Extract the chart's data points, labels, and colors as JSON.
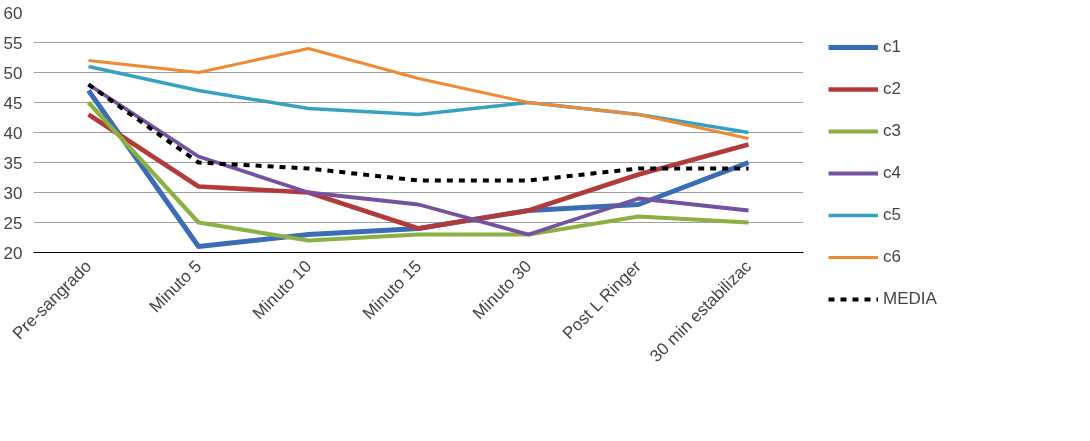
{
  "chart_data": {
    "type": "line",
    "categories": [
      "Pre-sangrado",
      "Minuto 5",
      "Minuto 10",
      "Minuto 15",
      "Minuto 30",
      "Post L Ringer",
      "30 min estabilizac"
    ],
    "ylim": [
      20,
      60
    ],
    "yticks": [
      20,
      25,
      30,
      35,
      40,
      45,
      50,
      55,
      60
    ],
    "grid": "y",
    "legend": "right",
    "line_style": "solid",
    "marker": "none",
    "series": [
      {
        "name": "c1",
        "color": "#3a6db5",
        "values": [
          47,
          21,
          23,
          24,
          27,
          28,
          35
        ]
      },
      {
        "name": "c2",
        "color": "#b33a3a",
        "values": [
          43,
          31,
          30,
          24,
          27,
          33,
          38
        ]
      },
      {
        "name": "c3",
        "color": "#8cb043",
        "values": [
          45,
          25,
          22,
          23,
          23,
          26,
          25
        ]
      },
      {
        "name": "c4",
        "color": "#7452a0",
        "values": [
          48,
          36,
          30,
          28,
          23,
          29,
          27
        ]
      },
      {
        "name": "c5",
        "color": "#35a3c0",
        "values": [
          51,
          47,
          44,
          43,
          45,
          43,
          40
        ]
      },
      {
        "name": "c6",
        "color": "#ef8a33",
        "values": [
          52,
          50,
          54,
          49,
          45,
          43,
          39
        ]
      },
      {
        "name": "MEDIA",
        "color": "#000000",
        "line_style": "dashed",
        "values": [
          48,
          35,
          34,
          32,
          32,
          34,
          34
        ]
      }
    ]
  }
}
